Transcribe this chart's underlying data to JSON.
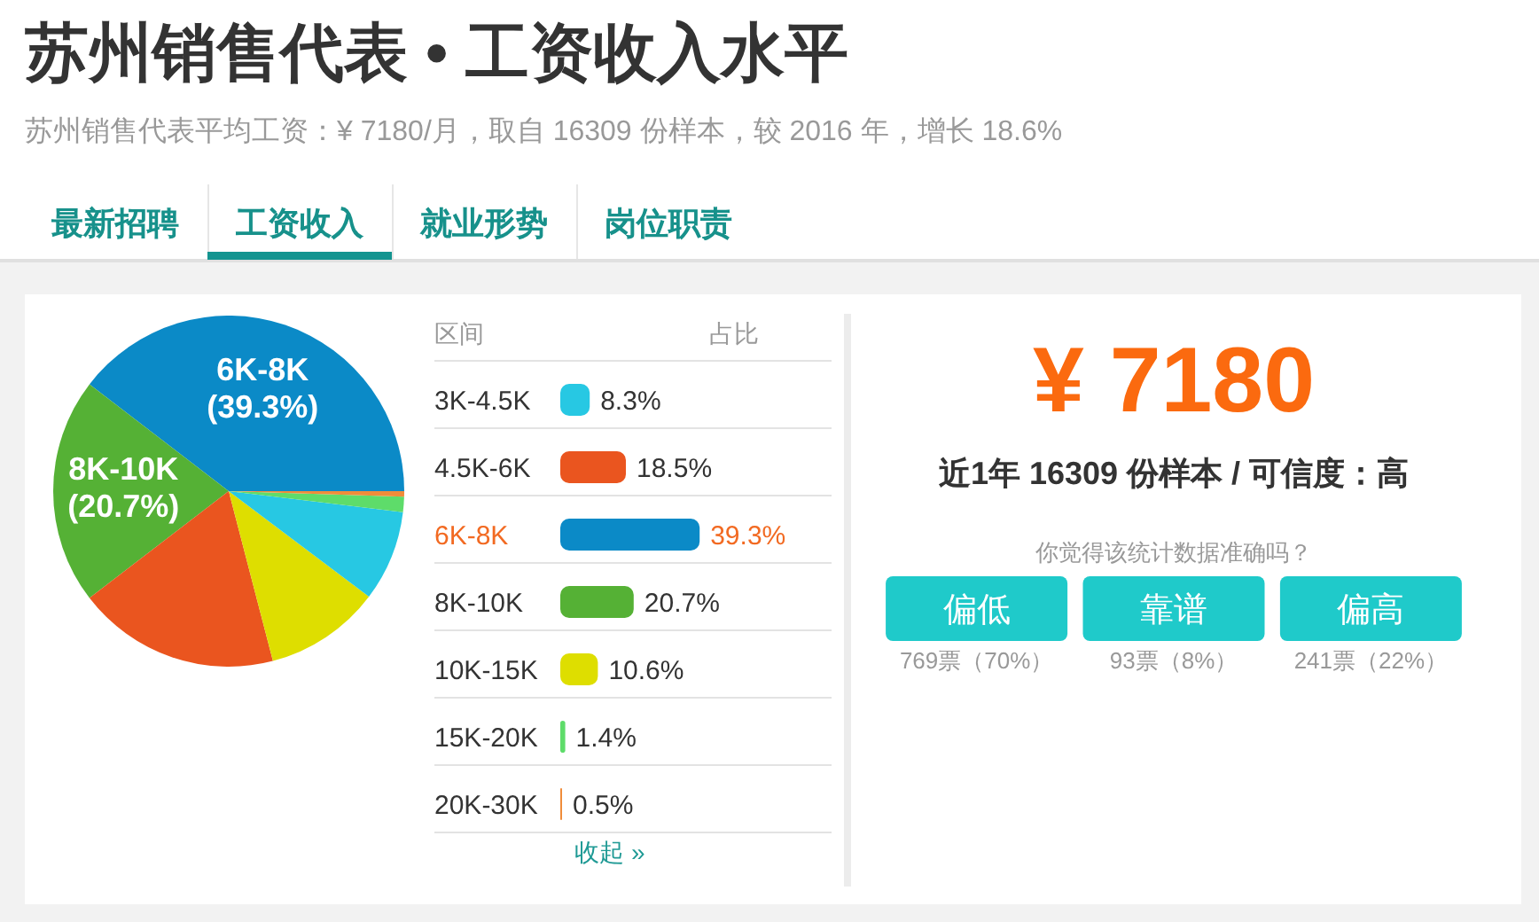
{
  "chart_data": [
    {
      "type": "pie",
      "title": "苏州销售代表 • 工资收入水平",
      "subtitle": "苏州销售代表平均工资：¥ 7180/月，取自 16309 份样本，较 2016 年，增长 18.6%",
      "annotations": [
        "最新招聘",
        "工资收入",
        "就业形势",
        "岗位职责"
      ],
      "categories": [
        "6K-8K",
        "8K-10K",
        null,
        null,
        null,
        null,
        null
      ],
      "values": [
        39.3,
        20.7,
        18.5,
        10.6,
        8.3,
        1.4,
        0.5
      ],
      "colors": [
        "#0b8ac7",
        "#55b135",
        "#ea551f",
        "#dede00",
        "#27c8e3",
        "#5edc6a",
        "#f08c3a"
      ],
      "value_labels": [
        "(39.3%)",
        "(20.7%)",
        null,
        null,
        null,
        null,
        null
      ]
    },
    {
      "type": "bar",
      "orientation": "horizontal",
      "ylabel": "区间",
      "xlabel": "占比",
      "categories": [
        "3K-4.5K",
        "4.5K-6K",
        "6K-8K",
        "8K-10K",
        "10K-15K",
        "15K-20K",
        "20K-30K"
      ],
      "values": [
        8.3,
        18.5,
        39.3,
        20.7,
        10.6,
        1.4,
        0.5
      ],
      "colors": [
        "#27c8e3",
        "#ea551f",
        "#0b8ac7",
        "#55b135",
        "#dede00",
        "#5edc6a",
        "#f08c3a"
      ],
      "value_labels": [
        "8.3%",
        "18.5%",
        "39.3%",
        "20.7%",
        "10.6%",
        "1.4%",
        "0.5%"
      ],
      "annotations": [
        "收起 »"
      ]
    },
    {
      "type": "other",
      "title": "¥ 7180",
      "subtitle": "近1年 16309 份样本 / 可信度：高",
      "annotations": [
        "你觉得该统计数据准确吗？",
        "偏低",
        "靠谱",
        "偏高",
        "769票（70%）",
        "93票（8%）",
        "241票（22%）"
      ]
    }
  ]
}
